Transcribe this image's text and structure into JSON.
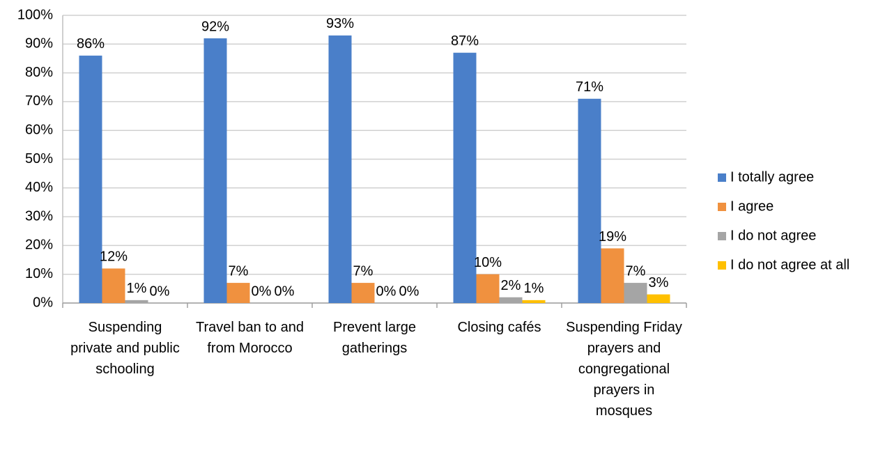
{
  "chart_data": {
    "type": "bar",
    "categories": [
      "Suspending private and public schooling",
      "Travel ban to and from Morocco",
      "Prevent large gatherings",
      "Closing cafés",
      "Suspending Friday prayers and congregational prayers in mosques"
    ],
    "series": [
      {
        "name": "I totally agree",
        "color": "#4a7fc9",
        "values": [
          86,
          92,
          93,
          87,
          71
        ],
        "value_labels": [
          "86%",
          "92%",
          "93%",
          "87%",
          "71%"
        ]
      },
      {
        "name": "I agree",
        "color": "#f0913f",
        "values": [
          12,
          7,
          7,
          10,
          19
        ],
        "value_labels": [
          "12%",
          "7%",
          "7%",
          "10%",
          "19%"
        ]
      },
      {
        "name": "I do not agree",
        "color": "#a5a5a5",
        "values": [
          1,
          0,
          0,
          2,
          7
        ],
        "value_labels": [
          "1%",
          "0%",
          "0%",
          "2%",
          "7%"
        ]
      },
      {
        "name": "I do not agree at all",
        "color": "#ffc000",
        "values": [
          0,
          0,
          0,
          1,
          3
        ],
        "value_labels": [
          "0%",
          "0%",
          "0%",
          "1%",
          "3%"
        ]
      }
    ],
    "ylim": [
      0,
      100
    ],
    "yticks": [
      {
        "value": 0,
        "label": "0%"
      },
      {
        "value": 10,
        "label": "10%"
      },
      {
        "value": 20,
        "label": "20%"
      },
      {
        "value": 30,
        "label": "30%"
      },
      {
        "value": 40,
        "label": "40%"
      },
      {
        "value": 50,
        "label": "50%"
      },
      {
        "value": 60,
        "label": "60%"
      },
      {
        "value": 70,
        "label": "70%"
      },
      {
        "value": 80,
        "label": "80%"
      },
      {
        "value": 90,
        "label": "90%"
      },
      {
        "value": 100,
        "label": "100%"
      }
    ],
    "grid": true,
    "legend": "right"
  }
}
